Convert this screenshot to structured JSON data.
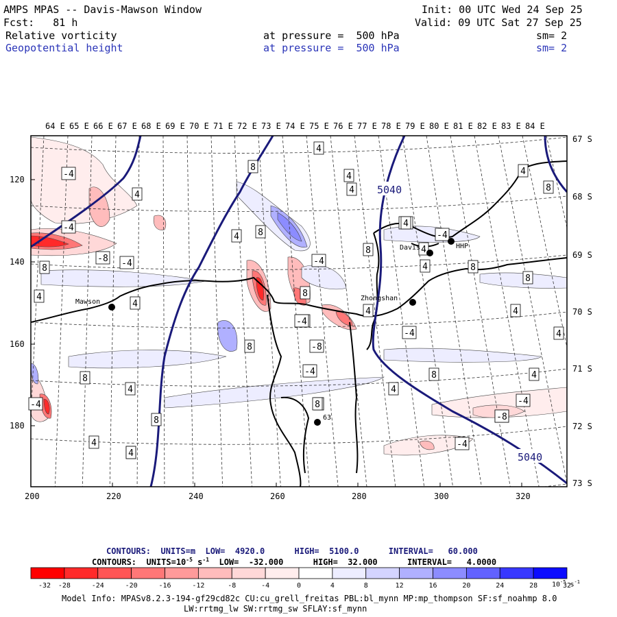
{
  "header": {
    "line1_left": "AMPS MPAS -- Davis-Mawson Window",
    "line1_right": "Init: 00 UTC Wed 24 Sep 25",
    "line2_left": "Fcst:   81 h",
    "line2_right": "Valid: 09 UTC Sat 27 Sep 25",
    "field1_name": "Relative vorticity",
    "field1_level": "at pressure =  500 hPa",
    "field1_smooth": "sm= 2",
    "field2_name": "Geopotential height",
    "field2_level": "at pressure =  500 hPa",
    "field2_smooth": "sm= 2"
  },
  "map": {
    "top_lon_labels": [
      "64 E",
      "65 E",
      "66 E",
      "67 E",
      "68 E",
      "69 E",
      "70 E",
      "71 E",
      "72 E",
      "73 E",
      "74 E",
      "75 E",
      "76 E",
      "77 E",
      "78 E",
      "79 E",
      "80 E",
      "81 E",
      "82 E",
      "83 E",
      "84 E"
    ],
    "right_lat_labels": [
      "67 S",
      "68 S",
      "69 S",
      "70 S",
      "71 S",
      "72 S",
      "73 S"
    ],
    "left_y_ticks": [
      "120",
      "140",
      "160",
      "180"
    ],
    "bottom_x_ticks": [
      "200",
      "220",
      "240",
      "260",
      "280",
      "300",
      "320"
    ],
    "stations": [
      {
        "name": "Mawson"
      },
      {
        "name": "Zhongshan"
      },
      {
        "name": "Davis"
      },
      {
        "name": "HHP"
      },
      {
        "name": "63"
      }
    ],
    "height_labels": [
      "5040",
      "5040"
    ],
    "vort_labels": [
      "-4",
      "-4",
      "-4",
      "4",
      "8",
      "4",
      "-4",
      "-8",
      "-4",
      "8",
      "4",
      "4",
      "8",
      "-4",
      "4",
      "8",
      "4",
      "-8",
      "4",
      "4",
      "8",
      "-4",
      "4",
      "8",
      "4",
      "-4",
      "4",
      "-4",
      "8",
      "4",
      "4",
      "8",
      "8",
      "4",
      "-8",
      "4",
      "8",
      "4",
      "-4",
      "8",
      "4",
      "4",
      "4",
      "8",
      "4",
      "4",
      "-8",
      "-4",
      "-4",
      "8",
      "-4",
      "8",
      "4"
    ]
  },
  "legend": {
    "contours_height": "CONTOURS:  UNITS=m  LOW=  4920.0      HIGH=  5100.0      INTERVAL=   60.000",
    "contours_vort_prefix": "CONTOURS:  UNITS=10",
    "contours_vort_exp": "-5",
    "contours_vort_s": " s",
    "contours_vort_sexp": "-1",
    "contours_vort_rest": "  LOW=  -32.000      HIGH=  32.000      INTERVAL=   4.0000",
    "colorbar_ticks": [
      "-32",
      "-28",
      "-24",
      "-20",
      "-16",
      "-12",
      "-8",
      "-4",
      "0",
      "4",
      "8",
      "12",
      "16",
      "20",
      "24",
      "28",
      "32"
    ],
    "colorbar_unit": "10",
    "colorbar_unit_exp": "-5",
    "colorbar_unit_s": " s",
    "colorbar_unit_sexp": "-1",
    "colors": [
      "#ff0000",
      "#ff2a2a",
      "#ff5555",
      "#ff7777",
      "#ff9a9a",
      "#ffbcbc",
      "#ffd8d8",
      "#ffeded",
      "#ffffff",
      "#ffffff",
      "#ededff",
      "#d4d4ff",
      "#b0b0ff",
      "#8c8cff",
      "#6262ff",
      "#3838ff",
      "#0c0cff"
    ]
  },
  "info": {
    "line1": "Model Info: MPASv8.2.3-194-gf29cd82c CU:cu_grell_freitas PBL:bl_mynn MP:mp_thompson SF:sf_noahmp 8.0",
    "line2": "LW:rrtmg_lw SW:rrtmg_sw SFLAY:sf_mynn"
  }
}
